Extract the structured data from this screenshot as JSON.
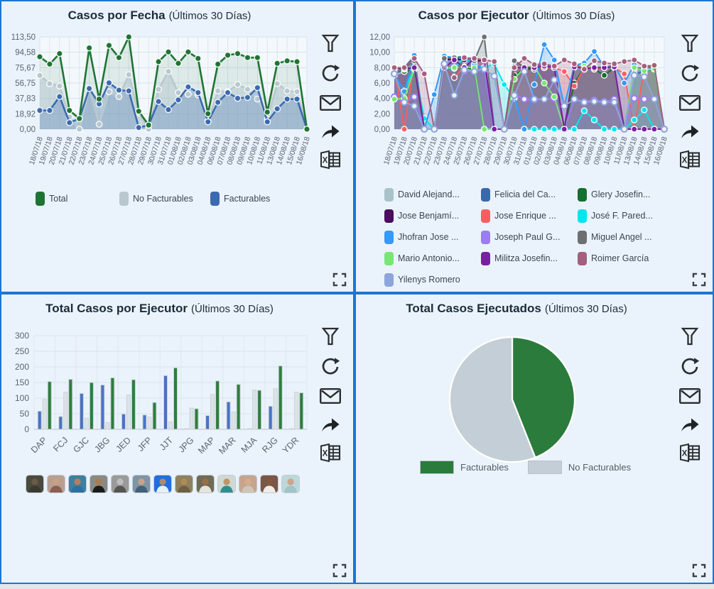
{
  "page": {
    "background": "#eaf3fc",
    "border_color": "#1b76d3",
    "title_color": "#1c2b3a",
    "icon_color": "#2b2e31",
    "axis_text_color": "#5a6470"
  },
  "toolbar": {
    "icons": [
      "filter",
      "refresh",
      "mail",
      "share",
      "excel-export"
    ],
    "expand_icon": "expand"
  },
  "panels": [
    {
      "title": "Casos por Fecha",
      "subtitle": "(Últimos 30 Días)"
    },
    {
      "title": "Casos por Ejecutor",
      "subtitle": "(Últimos 30 Días)"
    },
    {
      "title": "Total Casos por Ejecutor",
      "subtitle": "(Últimos 30 Días)"
    },
    {
      "title": "Total Casos Ejecutados",
      "subtitle": "(Últimos 30 Días)"
    }
  ],
  "chart_data": [
    {
      "type": "area",
      "title": "Casos por Fecha (Últimos 30 Días)",
      "x": [
        "18/07/18",
        "19/07/18",
        "20/07/18",
        "21/07/18",
        "22/07/18",
        "23/07/18",
        "24/07/18",
        "25/07/18",
        "26/07/18",
        "27/07/18",
        "28/07/18",
        "29/07/18",
        "30/07/18",
        "31/07/18",
        "01/08/18",
        "02/08/18",
        "03/08/18",
        "04/08/18",
        "06/08/18",
        "07/08/18",
        "08/08/18",
        "09/08/18",
        "10/08/18",
        "11/08/18",
        "13/08/18",
        "14/08/18",
        "15/08/18",
        "16/08/18"
      ],
      "y_tick_labels": [
        "0,00",
        "18,92",
        "37,83",
        "56,75",
        "75,67",
        "94,58",
        "113,50"
      ],
      "ylim": [
        0,
        113.5
      ],
      "grid": true,
      "legend_position": "bottom",
      "series": [
        {
          "name": "Total",
          "color": "#1f7433",
          "fill": "rgba(34,116,54,0.10)",
          "zorder": 3,
          "values": [
            89,
            80,
            93,
            23,
            13,
            100,
            37,
            103,
            88,
            113.5,
            22,
            5,
            83,
            95,
            81,
            95,
            87,
            19,
            80,
            91,
            93,
            88,
            88,
            21,
            81,
            84,
            83,
            0
          ]
        },
        {
          "name": "No Facturables",
          "color": "#b9c8ce",
          "fill": "rgba(176,196,205,0.45)",
          "zorder": 1,
          "values": [
            66,
            56,
            53,
            15,
            0,
            50,
            6,
            46,
            40,
            67,
            20,
            0,
            49,
            71,
            45,
            43,
            42,
            10,
            47,
            46,
            55,
            49,
            37,
            12,
            56,
            47,
            46,
            0
          ]
        },
        {
          "name": "Facturables",
          "color": "#3b6ab0",
          "fill": "rgba(66,110,180,0.28)",
          "zorder": 2,
          "values": [
            23,
            23,
            40,
            8,
            13,
            50,
            31,
            57,
            48,
            47,
            2,
            5,
            34,
            24,
            36,
            52,
            45,
            9,
            33,
            45,
            38,
            39,
            51,
            9,
            25,
            37,
            37,
            0
          ]
        }
      ]
    },
    {
      "type": "area",
      "title": "Casos por Ejecutor (Últimos 30 Días)",
      "x": [
        "18/07/18",
        "19/07/18",
        "20/07/18",
        "21/07/18",
        "22/07/18",
        "23/07/18",
        "24/07/18",
        "25/07/18",
        "26/07/18",
        "27/07/18",
        "28/07/18",
        "29/07/18",
        "30/07/18",
        "31/07/18",
        "01/08/18",
        "02/08/18",
        "03/08/18",
        "04/08/18",
        "06/08/18",
        "07/08/18",
        "08/08/18",
        "09/08/18",
        "10/08/18",
        "11/08/18",
        "13/08/18",
        "14/08/18",
        "15/08/18",
        "16/08/18"
      ],
      "y_tick_labels": [
        "0,00",
        "2,00",
        "4,00",
        "6,00",
        "8,00",
        "10,00",
        "12,00"
      ],
      "ylim": [
        0,
        12
      ],
      "grid": true,
      "legend_position": "bottom",
      "series": [
        {
          "name": "David Alejand...",
          "color": "#a9c2ca",
          "hollow": true,
          "values": [
            7,
            7.5,
            8,
            0,
            0,
            8,
            8,
            8,
            7.5,
            8,
            0,
            0,
            8,
            8,
            7.8,
            8,
            8,
            0,
            8,
            7.8,
            8,
            8,
            8,
            0,
            7.5,
            8,
            7.8,
            0
          ]
        },
        {
          "name": "Felicia del Ca...",
          "color": "#3a68ac",
          "values": [
            7.2,
            8,
            9.5,
            0,
            0,
            9.4,
            9,
            9.5,
            8.3,
            8,
            0,
            0,
            9,
            8,
            8.2,
            8.3,
            8,
            0,
            8.4,
            8,
            8,
            8.1,
            8,
            0,
            7.2,
            7.5,
            8,
            0
          ]
        },
        {
          "name": "Glery Josefin...",
          "color": "#156f2e",
          "values": [
            7.6,
            7.5,
            7.8,
            0,
            0,
            8,
            8,
            8,
            7.8,
            0,
            0,
            0,
            7,
            7.8,
            7.8,
            8,
            8,
            0,
            6,
            8,
            7.8,
            7,
            8,
            0,
            8,
            7.6,
            7.8,
            0
          ]
        },
        {
          "name": "Jose Benjamí...",
          "color": "#4a0d5f",
          "values": [
            8,
            7.8,
            8,
            0,
            0,
            9,
            9.1,
            9,
            8.8,
            9,
            0,
            0,
            8.9,
            8,
            8.2,
            8.2,
            8.1,
            0,
            8.2,
            7.8,
            8,
            8.1,
            8.2,
            0,
            0,
            0,
            0,
            0
          ]
        },
        {
          "name": "Jose Enrique ...",
          "color": "#fb5d63",
          "values": [
            8,
            0,
            8.9,
            0,
            0,
            8,
            6.8,
            8,
            9.2,
            9,
            0,
            0,
            8,
            8,
            8,
            8,
            8,
            7.5,
            5.6,
            8,
            7.8,
            8,
            8,
            7.2,
            0,
            8,
            8.2,
            0
          ]
        },
        {
          "name": "José F. Pared...",
          "color": "#00e6ee",
          "values": [
            7,
            5,
            8,
            1.4,
            0,
            8,
            7.9,
            9.4,
            8.3,
            8,
            8.5,
            5.8,
            4,
            0,
            0,
            0,
            0,
            0,
            0,
            2.4,
            1.2,
            0,
            0,
            0,
            1.2,
            2.5,
            0,
            0
          ]
        },
        {
          "name": "Jhofran Jose ...",
          "color": "#3399fa",
          "values": [
            7.1,
            4.9,
            9.6,
            0,
            4.5,
            9.5,
            9.3,
            9.5,
            8.4,
            7.8,
            0,
            0,
            4.2,
            0,
            5.8,
            11,
            9,
            3,
            8.3,
            8.6,
            10.1,
            8.1,
            8.3,
            6,
            8.4,
            7.2,
            8.3,
            0
          ]
        },
        {
          "name": "Joseph Paul G...",
          "color": "#9b7df0",
          "hollow": true,
          "values": [
            4.2,
            3.5,
            4.2,
            0,
            0,
            8.5,
            4.4,
            7.5,
            7.6,
            7.8,
            0,
            0,
            4.5,
            3.9,
            3.8,
            3.9,
            4,
            0,
            3.9,
            3.6,
            3.8,
            3.6,
            3.9,
            0,
            4,
            3.9,
            4,
            0
          ]
        },
        {
          "name": "Miguel Angel ...",
          "color": "#6d7073",
          "values": [
            7.4,
            7.8,
            8.9,
            0,
            0,
            9.2,
            9.3,
            9.4,
            8.9,
            12,
            0,
            0,
            8.9,
            8,
            8.1,
            8.3,
            8.2,
            0,
            8.4,
            8,
            8.1,
            8,
            8.2,
            0,
            7.9,
            8,
            8.1,
            0
          ]
        },
        {
          "name": "Mario Antonio...",
          "color": "#79e575",
          "values": [
            3.9,
            4,
            7.8,
            0,
            0,
            8,
            8,
            8.1,
            8,
            0,
            0,
            0,
            6.5,
            8,
            8.2,
            6,
            4.2,
            0,
            8.3,
            8.2,
            8,
            8.1,
            8,
            0,
            8,
            7.6,
            7.9,
            0
          ]
        },
        {
          "name": "Militza Josefin...",
          "color": "#7a1fa0",
          "values": [
            8,
            7.9,
            8,
            0,
            0,
            8,
            9,
            8,
            9.2,
            9,
            0,
            0,
            8,
            8,
            8,
            8.2,
            8,
            0,
            8.1,
            7.9,
            8,
            8,
            8.1,
            0,
            0,
            0,
            0,
            0
          ]
        },
        {
          "name": "Roimer García",
          "color": "#a35f7e",
          "values": [
            8,
            8,
            9.2,
            7.2,
            0,
            8,
            6.7,
            9.3,
            9.2,
            9,
            8.8,
            0,
            8,
            9.2,
            8.4,
            8.5,
            8.2,
            9,
            8.5,
            7.8,
            8.9,
            8.6,
            8.5,
            8.8,
            9,
            8.2,
            8.3,
            0
          ]
        },
        {
          "name": "Yilenys Romero",
          "color": "#8da4dd",
          "hollow": true,
          "values": [
            7.2,
            3.5,
            3,
            0,
            0,
            8.5,
            4.4,
            7.7,
            7.5,
            7.8,
            6.9,
            0,
            4.4,
            7.5,
            3.9,
            3.9,
            6.4,
            3,
            3.9,
            3.5,
            3.6,
            3.5,
            3.5,
            0,
            7,
            6.8,
            3.9,
            0
          ]
        }
      ]
    },
    {
      "type": "bar",
      "title": "Total Casos por Ejecutor (Últimos 30 Días)",
      "categories": [
        "DAP",
        "FCJ",
        "GJC",
        "JBG",
        "JED",
        "JFP",
        "JJT",
        "JPG",
        "MAP",
        "MAR",
        "MJA",
        "RJG",
        "YDR"
      ],
      "y_ticks": [
        0,
        50,
        100,
        150,
        200,
        250,
        300
      ],
      "ylim": [
        0,
        300
      ],
      "grid": true,
      "series": [
        {
          "name": "Facturables",
          "color": "#4a72c4",
          "values": [
            58,
            41,
            115,
            142,
            49,
            46,
            172,
            1,
            44,
            88,
            1,
            74,
            1
          ]
        },
        {
          "name": "No Facturables",
          "color": "#dde4e8",
          "values": [
            96,
            119,
            36,
            22,
            110,
            39,
            24,
            68,
            112,
            56,
            126,
            130,
            119
          ]
        },
        {
          "name": "Total",
          "color": "#2e7d3e",
          "values": [
            153,
            160,
            150,
            165,
            159,
            86,
            197,
            66,
            155,
            144,
            125,
            203,
            117
          ]
        }
      ],
      "avatars": [
        {
          "bg": "#4a4a3f",
          "skin": "#6b5b46",
          "shirt": "#3a3a32"
        },
        {
          "bg": "#b99f92",
          "skin": "#c9a183",
          "shirt": "#8c5f52"
        },
        {
          "bg": "#3f7f9f",
          "skin": "#b57f5f",
          "shirt": "#2f6f9f"
        },
        {
          "bg": "#8a8a85",
          "skin": "#a97c50",
          "shirt": "#1a1a1a"
        },
        {
          "bg": "#9a9a9a",
          "skin": "#bfbfbf",
          "shirt": "#555555"
        },
        {
          "bg": "#7f94a5",
          "skin": "#caa387",
          "shirt": "#44607a"
        },
        {
          "bg": "#1f6fe0",
          "skin": "#b58a5f",
          "shirt": "#e8f0f5"
        },
        {
          "bg": "#8f805f",
          "skin": "#b08a55",
          "shirt": "#6f6045"
        },
        {
          "bg": "#6f6a55",
          "skin": "#9a6f45",
          "shirt": "#e5e5dd"
        },
        {
          "bg": "#cfd8d5",
          "skin": "#c09566",
          "shirt": "#2f8f8f"
        },
        {
          "bg": "#c5a58f",
          "skin": "#d8ab8a",
          "shirt": "#cfc5b5"
        },
        {
          "bg": "#7a5548",
          "skin": "#7f5a3f",
          "shirt": "#f0ece5"
        },
        {
          "bg": "#bcd8da",
          "skin": "#cfa58a",
          "shirt": "#9fc5c9"
        }
      ]
    },
    {
      "type": "pie",
      "title": "Total Casos Ejecutados (Últimos 30 Días)",
      "labels": [
        "Facturables",
        "No Facturables"
      ],
      "values": [
        44,
        56
      ],
      "values_note": "percent, estimated from slice angles",
      "colors": [
        "#2a7b3c",
        "#c3ced6"
      ],
      "start_angle": "top",
      "direction": "clockwise",
      "legend_position": "bottom"
    }
  ]
}
